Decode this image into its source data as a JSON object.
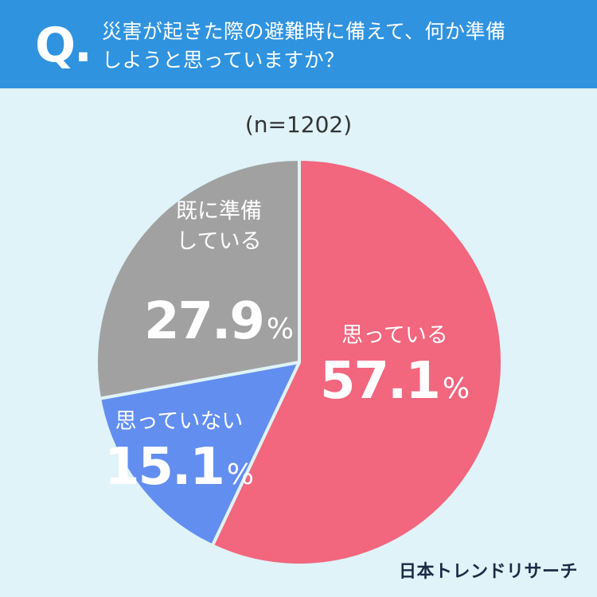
{
  "question": {
    "mark": "Q.",
    "line1": "災害が起きた際の避難時に備えて、何か準備",
    "line2": "しようと思っていますか？"
  },
  "sample_label": "(n=1202)",
  "brand": "日本トレンドリサーチ",
  "chart_data": {
    "type": "pie",
    "start_angle_deg": 0,
    "direction": "clockwise",
    "slices": [
      {
        "label": "思っている",
        "value": 57.1,
        "value_label": "57.1",
        "unit": "%",
        "color": "#f2667e"
      },
      {
        "label": "思っていない",
        "value": 15.1,
        "value_label": "15.1",
        "unit": "%",
        "color": "#628ef0"
      },
      {
        "label_lines": [
          "既に準備",
          "している"
        ],
        "value": 27.9,
        "value_label": "27.9",
        "unit": "%",
        "color": "#a1a1a1"
      }
    ]
  }
}
